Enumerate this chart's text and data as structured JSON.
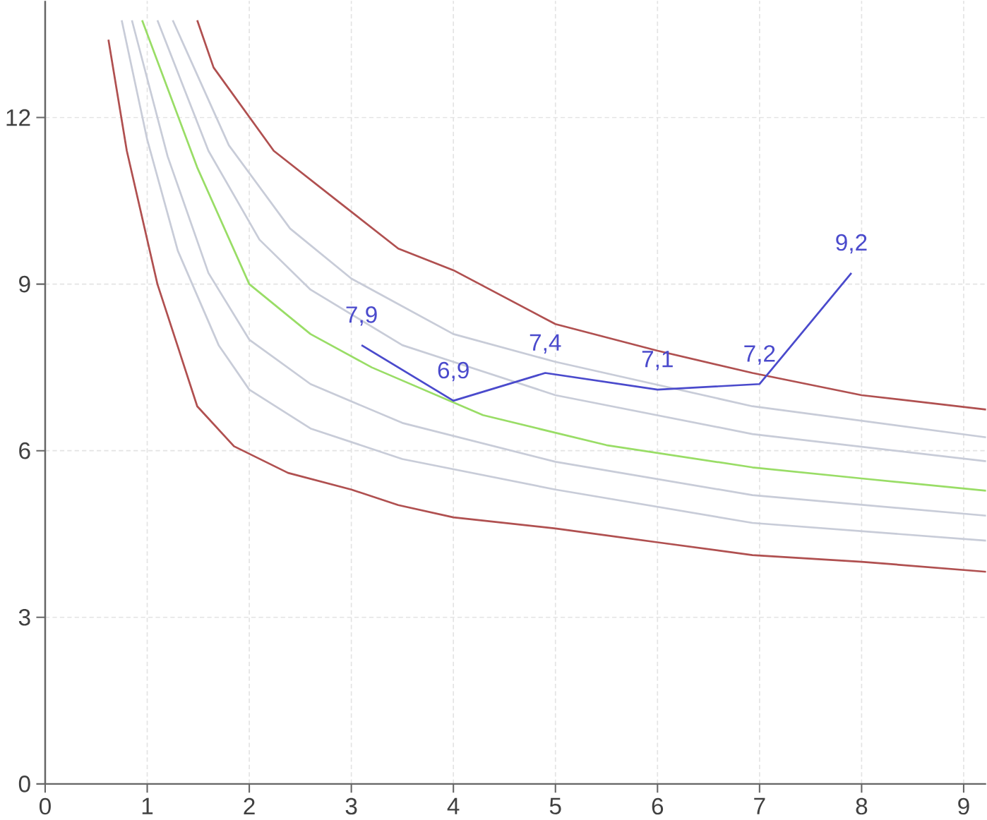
{
  "chart_data": {
    "type": "line",
    "xlim": [
      0,
      9.22
    ],
    "ylim": [
      0,
      14.1
    ],
    "xticks": [
      0,
      1,
      2,
      3,
      4,
      5,
      6,
      7,
      8,
      9
    ],
    "yticks": [
      0,
      3,
      6,
      9,
      12
    ],
    "grid": true,
    "marker": "none",
    "line_style": "solid",
    "series": [
      {
        "color": "#b05050",
        "x": [
          0.62,
          0.8,
          1.1,
          1.49,
          1.85,
          2.38,
          3,
          3.46,
          4,
          5,
          6,
          6.93,
          8,
          9.22
        ],
        "values": [
          13.4,
          11.4,
          9.0,
          6.8,
          6.08,
          5.6,
          5.3,
          5.02,
          4.8,
          4.6,
          4.35,
          4.12,
          4.0,
          3.82
        ]
      },
      {
        "color": "#c8ccd8",
        "x": [
          0.75,
          1.0,
          1.3,
          1.7,
          2,
          2.6,
          3.5,
          5,
          6.93,
          9.22
        ],
        "values": [
          13.75,
          11.6,
          9.6,
          7.9,
          7.1,
          6.4,
          5.85,
          5.3,
          4.7,
          4.38
        ]
      },
      {
        "color": "#c8ccd8",
        "x": [
          0.85,
          1.2,
          1.6,
          2,
          2.6,
          3.5,
          5,
          6.93,
          9.22
        ],
        "values": [
          13.75,
          11.3,
          9.2,
          8.0,
          7.2,
          6.5,
          5.8,
          5.2,
          4.83
        ]
      },
      {
        "color": "#99dd66",
        "x": [
          0.95,
          1.49,
          2,
          2.6,
          3.2,
          4.29,
          5.5,
          6.93,
          8,
          9.22
        ],
        "values": [
          13.75,
          11.1,
          9.0,
          8.1,
          7.5,
          6.64,
          6.1,
          5.7,
          5.5,
          5.28
        ]
      },
      {
        "color": "#c8ccd8",
        "x": [
          1.1,
          1.6,
          2.1,
          2.6,
          3.5,
          5,
          6.93,
          9.22
        ],
        "values": [
          13.75,
          11.4,
          9.8,
          8.9,
          7.9,
          7.0,
          6.3,
          5.81
        ]
      },
      {
        "color": "#c8ccd8",
        "x": [
          1.25,
          1.8,
          2.4,
          3,
          4,
          5,
          6.93,
          9.22
        ],
        "values": [
          13.75,
          11.5,
          10.0,
          9.1,
          8.1,
          7.6,
          6.8,
          6.24
        ]
      },
      {
        "color": "#b05050",
        "x": [
          1.49,
          1.65,
          2.24,
          2.89,
          3.46,
          4,
          5,
          6,
          6.93,
          8,
          9.22
        ],
        "values": [
          13.75,
          12.9,
          11.4,
          10.46,
          9.64,
          9.25,
          8.28,
          7.8,
          7.4,
          7.0,
          6.74
        ]
      },
      {
        "color": "#4a4acc",
        "x": [
          3.1,
          4,
          4.9,
          6,
          7,
          7.9
        ],
        "values": [
          7.9,
          6.9,
          7.4,
          7.1,
          7.2,
          9.2
        ],
        "value_labels": [
          "7,9",
          "6,9",
          "7,4",
          "7,1",
          "7,2",
          "9,2"
        ]
      }
    ]
  }
}
